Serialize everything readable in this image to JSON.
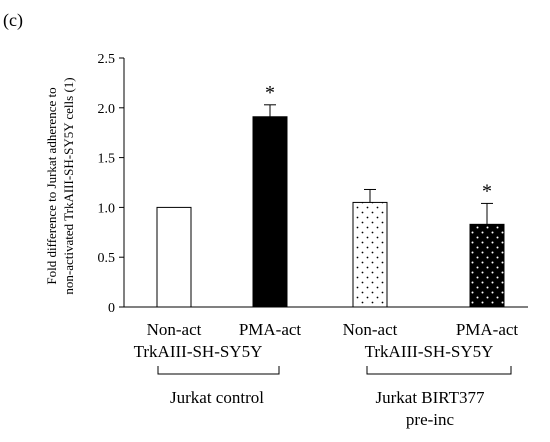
{
  "panel_label": "(c)",
  "chart_data": {
    "type": "bar",
    "ylabel_lines": [
      "Fold difference to Jurkat adherence  to",
      "non-activated TrkAIII-SH-SY5Y cells (1)"
    ],
    "ylim": [
      0,
      2.5
    ],
    "yticks": [
      "0",
      "0.5",
      "1.0",
      "1.5",
      "2.0",
      "2.5"
    ],
    "ytick_values": [
      0,
      0.5,
      1.0,
      1.5,
      2.0,
      2.5
    ],
    "categories": [
      "Non-act",
      "PMA-act",
      "Non-act",
      "PMA-act"
    ],
    "values": [
      1.0,
      1.91,
      1.05,
      0.83
    ],
    "errors": [
      0,
      0.12,
      0.13,
      0.21
    ],
    "significance": [
      "",
      "*",
      "",
      "*"
    ],
    "fills": [
      "white",
      "black",
      "white-dotted",
      "black-dotted"
    ],
    "sublabels": [
      "TrkAIII-SH-SY5Y",
      "TrkAIII-SH-SY5Y"
    ],
    "groups": [
      {
        "lines": [
          "Jurkat control"
        ]
      },
      {
        "lines": [
          "Jurkat BIRT377",
          "pre-inc"
        ]
      }
    ],
    "grid": false,
    "legend": "none"
  }
}
